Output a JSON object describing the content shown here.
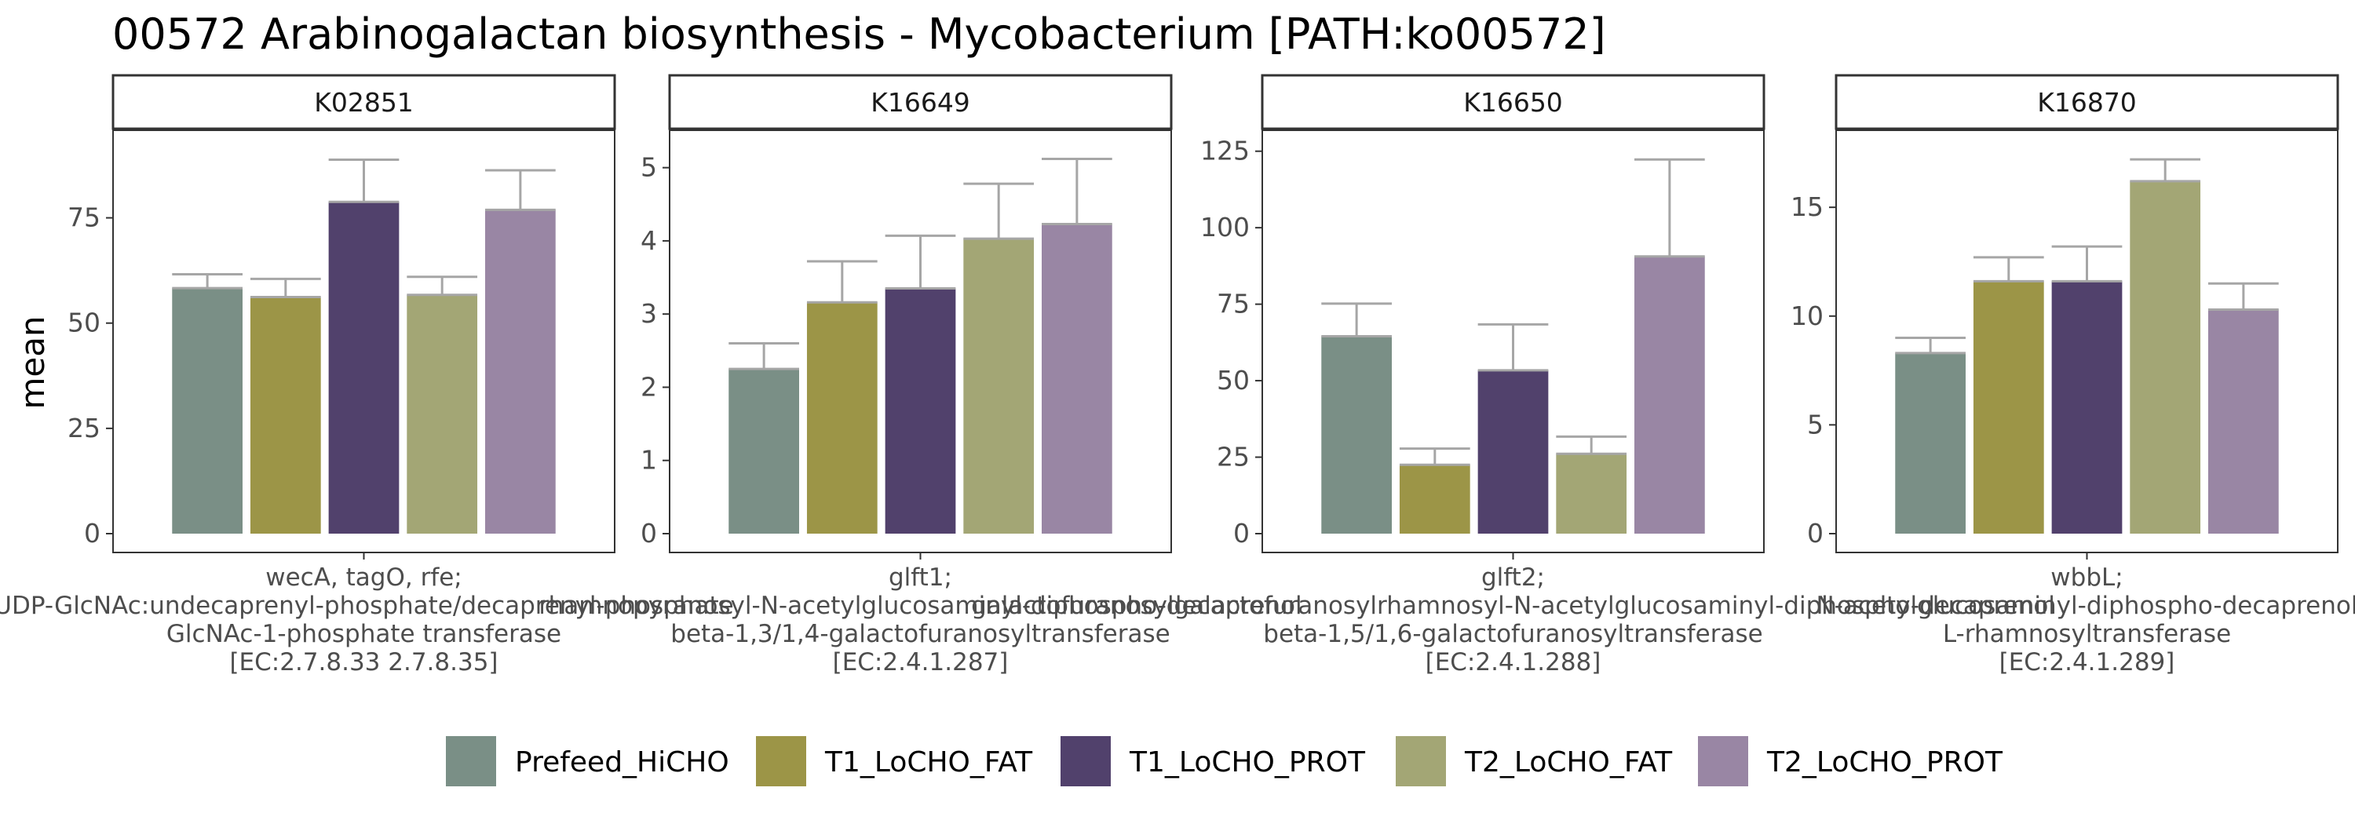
{
  "title": "00572 Arabinogalactan biosynthesis - Mycobacterium [PATH:ko00572]",
  "colors": {
    "Prefeed_HiCHO": "#7a8f86",
    "T1_LoCHO_FAT": "#9c9547",
    "T1_LoCHO_PROT": "#51416c",
    "T2_LoCHO_FAT": "#a3a675",
    "T2_LoCHO_PROT": "#9986a4",
    "error_bar": "#a6a6a6",
    "panel_border": "#333333",
    "strip_fill": "#ffffff"
  },
  "chart_data": {
    "type": "bar",
    "ylabel": "mean",
    "groups": [
      "Prefeed_HiCHO",
      "T1_LoCHO_FAT",
      "T1_LoCHO_PROT",
      "T2_LoCHO_FAT",
      "T2_LoCHO_PROT"
    ],
    "legend": {
      "position": "bottom",
      "entries": [
        "Prefeed_HiCHO",
        "T1_LoCHO_FAT",
        "T1_LoCHO_PROT",
        "T2_LoCHO_FAT",
        "T2_LoCHO_PROT"
      ]
    },
    "grid": false,
    "panels": [
      {
        "strip": "K02851",
        "ylim": [
          0,
          93
        ],
        "yticks": [
          0,
          25,
          50,
          75
        ],
        "category_lines": [
          "wecA, tagO, rfe;",
          "UDP-GlcNAc:undecaprenyl-phosphate/decaprenyl-phosphate",
          "GlcNAc-1-phosphate transferase",
          "[EC:2.7.8.33 2.7.8.35]"
        ],
        "values": [
          58.3,
          56.2,
          78.8,
          56.7,
          76.9
        ],
        "error_upper": [
          61.6,
          60.5,
          88.8,
          61.0,
          86.3
        ]
      },
      {
        "strip": "K16649",
        "ylim": [
          0,
          5.35
        ],
        "yticks": [
          0,
          1,
          2,
          3,
          4,
          5
        ],
        "category_lines": [
          "glft1;",
          "rhamnopyranosyl-N-acetylglucosaminyl-diphospho-decaprenol",
          "beta-1,3/1,4-galactofuranosyltransferase",
          "[EC:2.4.1.287]"
        ],
        "values": [
          2.25,
          3.16,
          3.35,
          4.03,
          4.23
        ],
        "error_upper": [
          2.6,
          3.72,
          4.07,
          4.78,
          5.12
        ]
      },
      {
        "strip": "K16650",
        "ylim": [
          0,
          128
        ],
        "yticks": [
          0,
          25,
          50,
          75,
          100,
          125
        ],
        "category_lines": [
          "glft2;",
          "galactofuranosylgalactofuranosylrhamnosyl-N-acetylglucosaminyl-diphospho-decaprenol",
          "beta-1,5/1,6-galactofuranosyltransferase",
          "[EC:2.4.1.288]"
        ],
        "values": [
          64.5,
          22.5,
          53.4,
          26.1,
          90.6
        ],
        "error_upper": [
          75.2,
          27.8,
          68.4,
          31.7,
          122.3
        ]
      },
      {
        "strip": "K16870",
        "ylim": [
          0,
          18
        ],
        "yticks": [
          0,
          5,
          10,
          15
        ],
        "category_lines": [
          "wbbL;",
          "N-acetylglucosaminyl-diphospho-decaprenol",
          "L-rhamnosyltransferase",
          "[EC:2.4.1.289]"
        ],
        "values": [
          8.3,
          11.6,
          11.6,
          16.2,
          10.3
        ],
        "error_upper": [
          9.0,
          12.7,
          13.2,
          17.2,
          11.5
        ]
      }
    ]
  }
}
